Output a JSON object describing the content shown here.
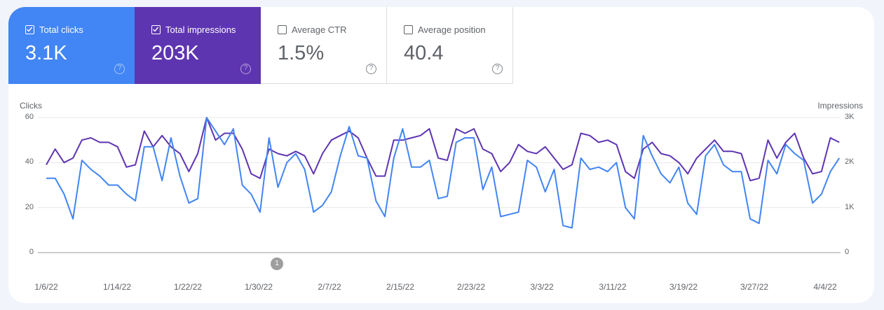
{
  "metrics": [
    {
      "label": "Total clicks",
      "value": "3.1K",
      "checked": true,
      "color": "#4285f4"
    },
    {
      "label": "Total impressions",
      "value": "203K",
      "checked": true,
      "color": "#5e35b1"
    },
    {
      "label": "Average CTR",
      "value": "1.5%",
      "checked": false
    },
    {
      "label": "Average position",
      "value": "40.4",
      "checked": false
    }
  ],
  "help_glyph": "?",
  "annotation": {
    "label": "1"
  },
  "chart_data": {
    "type": "line",
    "title": "",
    "left_axis": {
      "label": "Clicks",
      "ticks": [
        "60",
        "40",
        "20",
        "0"
      ],
      "range": [
        0,
        60
      ]
    },
    "right_axis": {
      "label": "Impressions",
      "ticks": [
        "3K",
        "2K",
        "1K",
        "0"
      ],
      "range": [
        0,
        3000
      ]
    },
    "x_tick_labels": [
      "1/6/22",
      "1/14/22",
      "1/22/22",
      "1/30/22",
      "2/7/22",
      "2/15/22",
      "2/23/22",
      "3/3/22",
      "3/11/22",
      "3/19/22",
      "3/27/22",
      "4/4/22"
    ],
    "x_start": "1/6/22",
    "grid": true,
    "series": [
      {
        "name": "Clicks",
        "axis": "left",
        "color": "#4285f4",
        "values": [
          33,
          33,
          26,
          15,
          41,
          37,
          34,
          30,
          30,
          26,
          23,
          47,
          47,
          32,
          51,
          34,
          22,
          24,
          60,
          54,
          48,
          55,
          30,
          26,
          18,
          51,
          29,
          40,
          44,
          37,
          18,
          21,
          27,
          43,
          56,
          43,
          42,
          23,
          16,
          42,
          55,
          38,
          38,
          41,
          24,
          25,
          49,
          51,
          51,
          28,
          38,
          16,
          17,
          18,
          41,
          38,
          27,
          37,
          12,
          11,
          42,
          37,
          38,
          36,
          40,
          20,
          15,
          52,
          43,
          35,
          31,
          38,
          22,
          17,
          43,
          48,
          39,
          36,
          36,
          15,
          13,
          41,
          35,
          48,
          44,
          41,
          22,
          26,
          36,
          42
        ]
      },
      {
        "name": "Impressions",
        "axis": "right",
        "color": "#5e35b1",
        "values": [
          1950,
          2300,
          2000,
          2100,
          2500,
          2550,
          2450,
          2450,
          2350,
          1900,
          1950,
          2700,
          2350,
          2600,
          2350,
          2200,
          1800,
          2200,
          3000,
          2500,
          2650,
          2650,
          2300,
          1750,
          1650,
          2300,
          2200,
          2150,
          2250,
          2150,
          1750,
          2200,
          2500,
          2600,
          2700,
          2550,
          2100,
          1700,
          1700,
          2500,
          2500,
          2550,
          2600,
          2750,
          2100,
          2050,
          2750,
          2650,
          2750,
          2300,
          2200,
          1800,
          2000,
          2400,
          2250,
          2200,
          2350,
          2100,
          1850,
          1950,
          2650,
          2600,
          2450,
          2500,
          2400,
          1800,
          1650,
          2300,
          2450,
          2200,
          2150,
          2000,
          1750,
          2100,
          2300,
          2500,
          2250,
          2250,
          2200,
          1600,
          1650,
          2500,
          2100,
          2450,
          2650,
          2100,
          1750,
          1800,
          2550,
          2450
        ]
      }
    ]
  }
}
